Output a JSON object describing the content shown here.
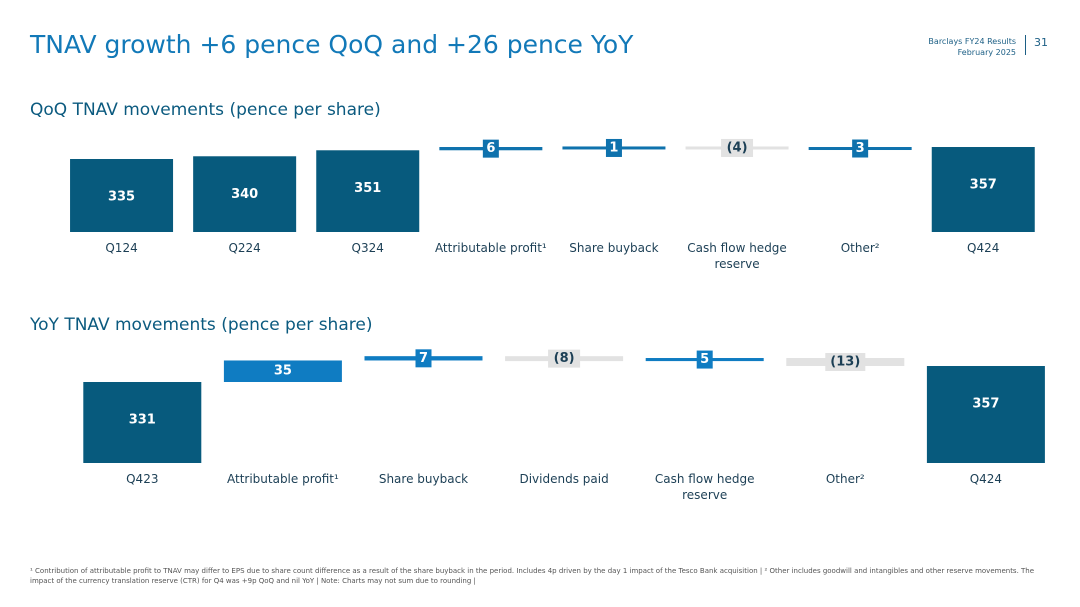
{
  "header": {
    "title": "TNAV growth +6 pence QoQ and +26 pence YoY",
    "report": "Barclays FY24 Results",
    "date": "February 2025",
    "page": 31
  },
  "chart_data": [
    {
      "type": "waterfall",
      "title": "QoQ TNAV movements (pence per share)",
      "categories": [
        "Q124",
        "Q224",
        "Q324",
        "Attributable profit¹",
        "Share buyback",
        "Cash flow hedge reserve",
        "Other²",
        "Q424"
      ],
      "measures": [
        "total",
        "total",
        "total",
        "relative",
        "relative",
        "relative",
        "relative",
        "total"
      ],
      "values": [
        335,
        340,
        351,
        6,
        1,
        -4,
        3,
        357
      ],
      "value_labels": [
        "335",
        "340",
        "351",
        "6",
        "1",
        "(4)",
        "3",
        "357"
      ],
      "colors": {
        "total": "#075a7d",
        "increase": "#0f72ad",
        "decrease": "#e2e2e2"
      }
    },
    {
      "type": "waterfall",
      "title": "YoY TNAV movements (pence per share)",
      "categories": [
        "Q423",
        "Attributable profit¹",
        "Share buyback",
        "Dividends paid",
        "Cash flow hedge reserve",
        "Other²",
        "Q424"
      ],
      "measures": [
        "total",
        "relative",
        "relative",
        "relative",
        "relative",
        "relative",
        "total"
      ],
      "values": [
        331,
        35,
        7,
        -8,
        5,
        -13,
        357
      ],
      "value_labels": [
        "331",
        "35",
        "7",
        "(8)",
        "5",
        "(13)",
        "357"
      ],
      "colors": {
        "total": "#075a7d",
        "increase": "#0f7cc2",
        "decrease": "#e2e2e2"
      }
    }
  ],
  "footnote": "¹ Contribution of attributable profit to TNAV may differ to EPS due to share count difference as a result of the share buyback in the period. Includes 4p driven by the day 1 impact of the Tesco Bank acquisition | ² Other includes goodwill and intangibles and other reserve movements. The impact of the currency translation reserve (CTR) for Q4 was +9p QoQ and nil YoY | Note: Charts may not sum due to rounding |"
}
